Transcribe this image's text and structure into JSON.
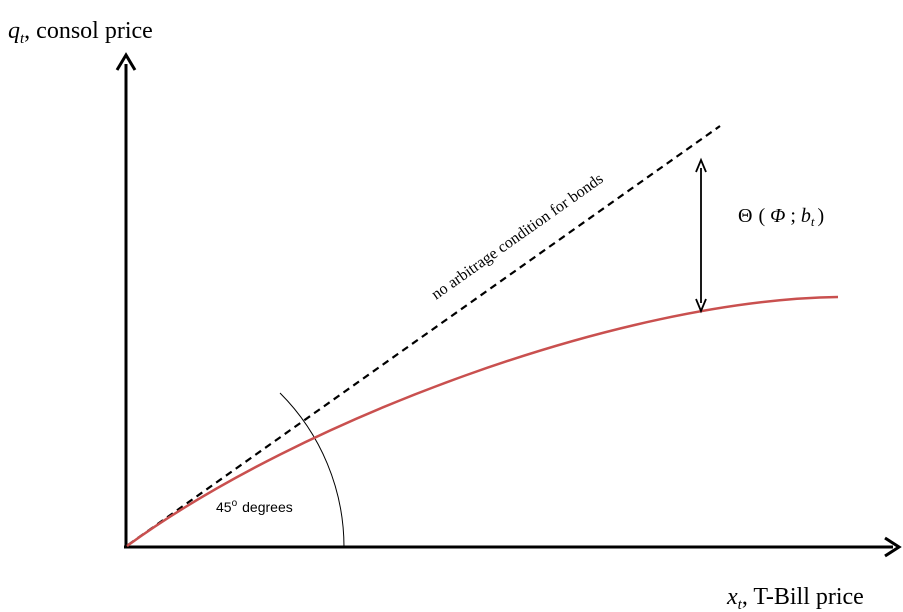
{
  "axes": {
    "y_symbol": "q",
    "y_sub": "t",
    "y_label_rest": ", consol price",
    "x_symbol": "x",
    "x_sub": "t",
    "x_label_rest": ", T-Bill price"
  },
  "no_arbitrage_line": {
    "label": "no arbitrage condition for bonds",
    "style": "dashed",
    "color": "#000000"
  },
  "curve": {
    "color": "#c9504f"
  },
  "gap": {
    "theta": "Θ",
    "open_paren": "(",
    "phi": "Φ",
    "separator": ";",
    "b_symbol": "b",
    "b_sub": "t",
    "close_paren": ")"
  },
  "angle": {
    "label_number": "45",
    "label_superscript": "o",
    "label_word": "degrees"
  }
}
